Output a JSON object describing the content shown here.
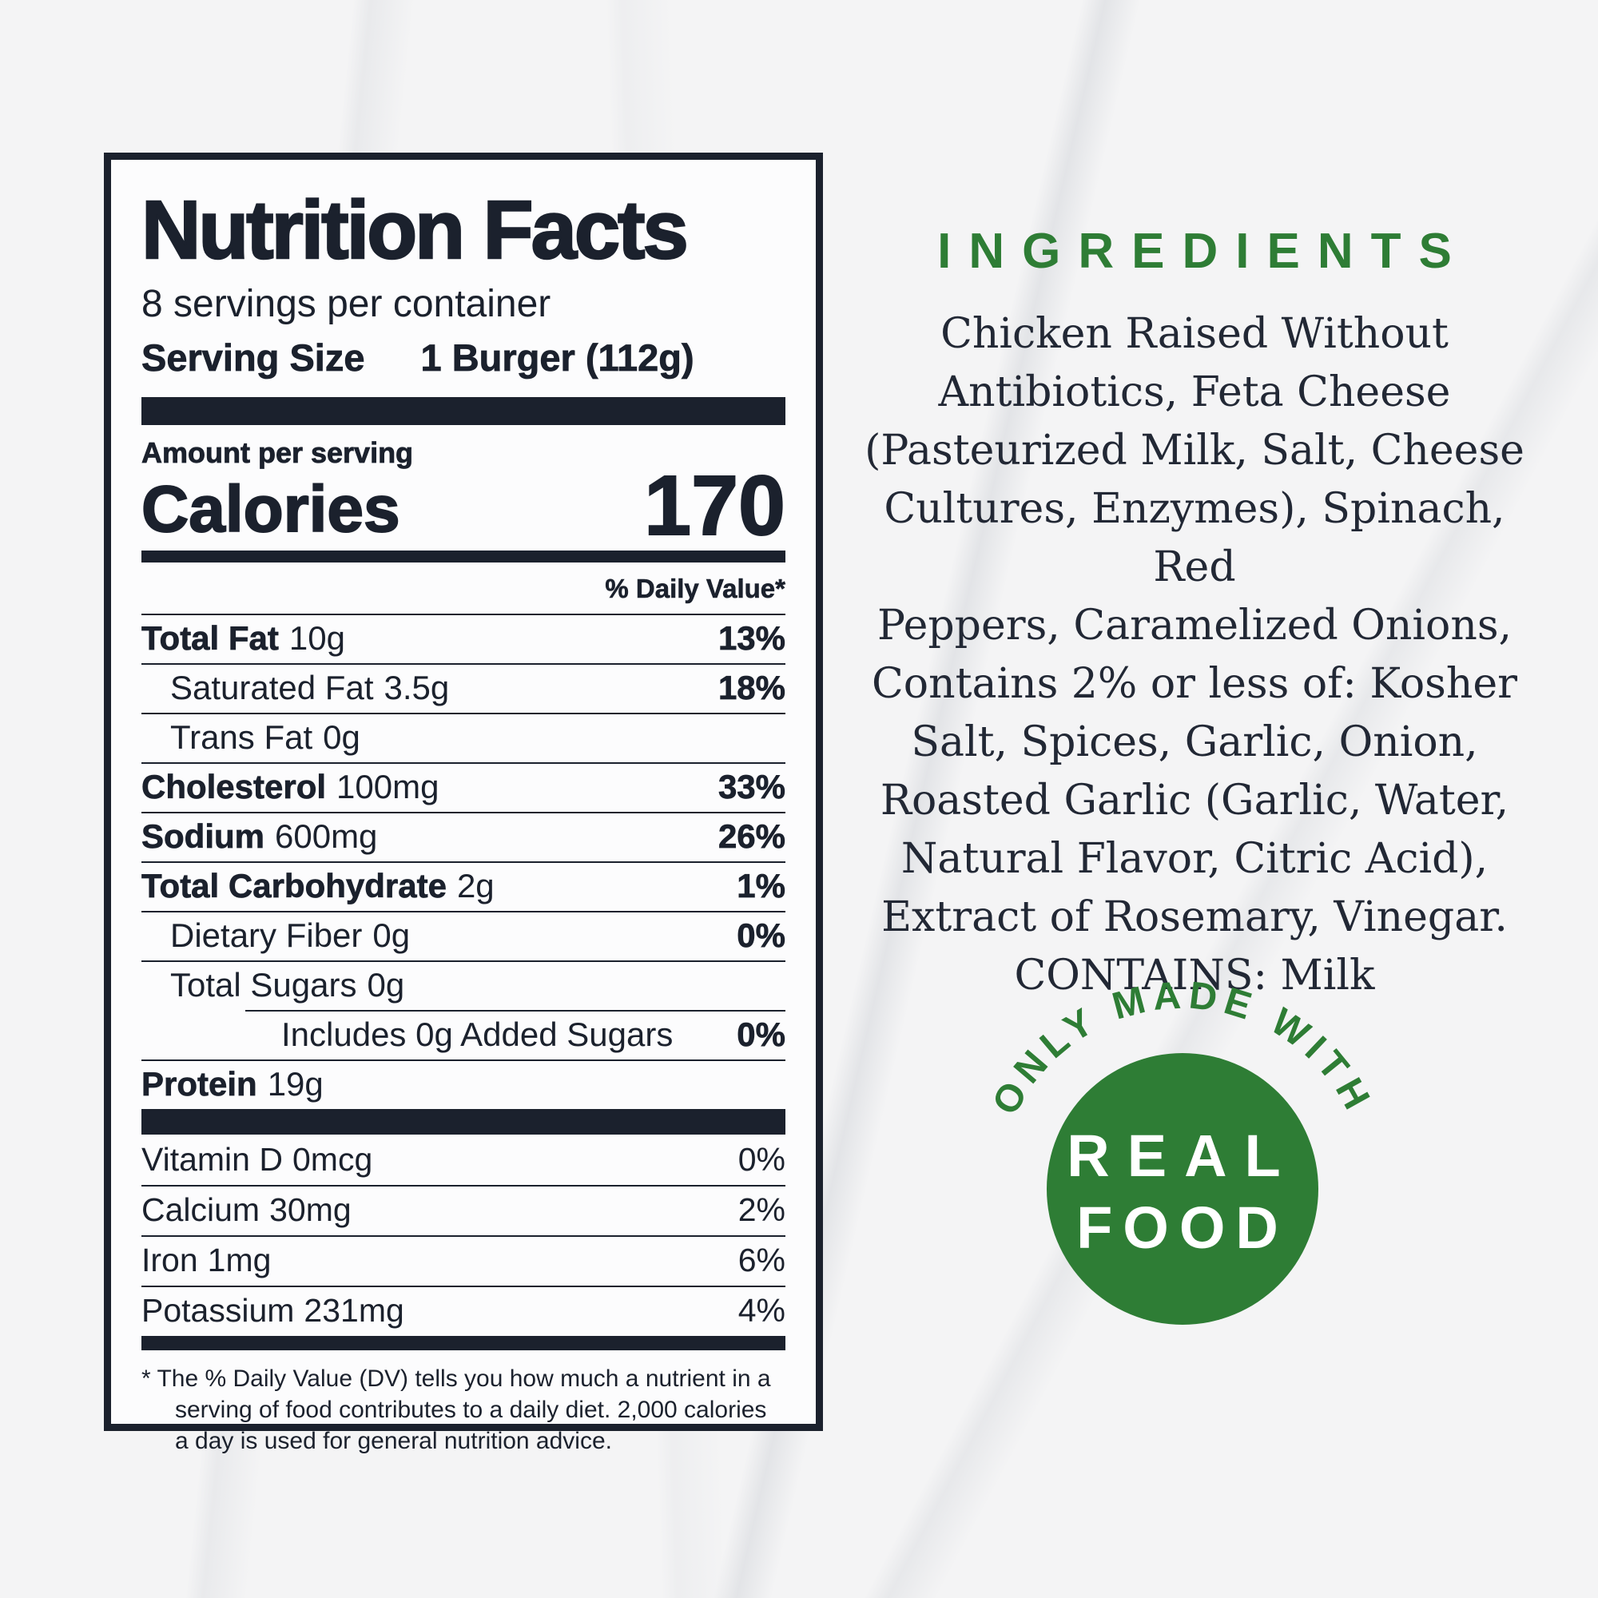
{
  "colors": {
    "ink": "#1b212d",
    "green": "#2e7d35",
    "paper": "#fcfcfd"
  },
  "label": {
    "title": "Nutrition Facts",
    "servings_per_container": "8 servings per container",
    "serving_size_label": "Serving Size",
    "serving_size_value": "1 Burger (112g)",
    "amount_per_serving": "Amount per serving",
    "calories_label": "Calories",
    "calories_value": "170",
    "daily_value_header": "% Daily Value*",
    "rows": [
      {
        "name": "Total Fat",
        "amount": "10g",
        "dv": "13%",
        "bold": true,
        "indent": 0,
        "inset_rule": false
      },
      {
        "name": "Saturated Fat",
        "amount": "3.5g",
        "dv": "18%",
        "bold": false,
        "indent": 1,
        "inset_rule": false
      },
      {
        "name": "Trans Fat",
        "amount": "0g",
        "dv": "",
        "bold": false,
        "indent": 1,
        "inset_rule": false
      },
      {
        "name": "Cholesterol",
        "amount": "100mg",
        "dv": "33%",
        "bold": true,
        "indent": 0,
        "inset_rule": false
      },
      {
        "name": "Sodium",
        "amount": "600mg",
        "dv": "26%",
        "bold": true,
        "indent": 0,
        "inset_rule": false
      },
      {
        "name": "Total Carbohydrate",
        "amount": "2g",
        "dv": "1%",
        "bold": true,
        "indent": 0,
        "inset_rule": false
      },
      {
        "name": "Dietary Fiber",
        "amount": "0g",
        "dv": "0%",
        "bold": false,
        "indent": 1,
        "inset_rule": false
      },
      {
        "name": "Total Sugars",
        "amount": "0g",
        "dv": "",
        "bold": false,
        "indent": 1,
        "inset_rule": false
      },
      {
        "name": "Includes 0g Added Sugars",
        "amount": "",
        "dv": "0%",
        "bold": false,
        "indent": 2,
        "inset_rule": true
      },
      {
        "name": "Protein",
        "amount": "19g",
        "dv": "",
        "bold": true,
        "indent": 0,
        "inset_rule": false
      }
    ],
    "vitamins": [
      {
        "name": "Vitamin D",
        "amount": "0mcg",
        "dv": "0%"
      },
      {
        "name": "Calcium",
        "amount": "30mg",
        "dv": "2%"
      },
      {
        "name": "Iron",
        "amount": "1mg",
        "dv": "6%"
      },
      {
        "name": "Potassium",
        "amount": "231mg",
        "dv": "4%"
      }
    ],
    "footnote": "* The % Daily Value (DV) tells you how much a nutrient in a serving of food contributes to a daily diet. 2,000 calories a day is used for general nutrition advice."
  },
  "ingredients": {
    "heading": "INGREDIENTS",
    "lines": [
      "Chicken Raised Without",
      "Antibiotics, Feta Cheese",
      "(Pasteurized Milk, Salt, Cheese",
      "Cultures, Enzymes), Spinach, Red",
      "Peppers, Caramelized Onions,",
      "Contains 2% or less of: Kosher",
      "Salt, Spices, Garlic, Onion,",
      "Roasted Garlic (Garlic, Water,",
      "Natural Flavor, Citric Acid),",
      "Extract of Rosemary, Vinegar.",
      "CONTAINS: Milk"
    ]
  },
  "badge": {
    "arc_text": "ONLY MADE WITH",
    "circle_line1": "REAL",
    "circle_line2": "FOOD"
  }
}
